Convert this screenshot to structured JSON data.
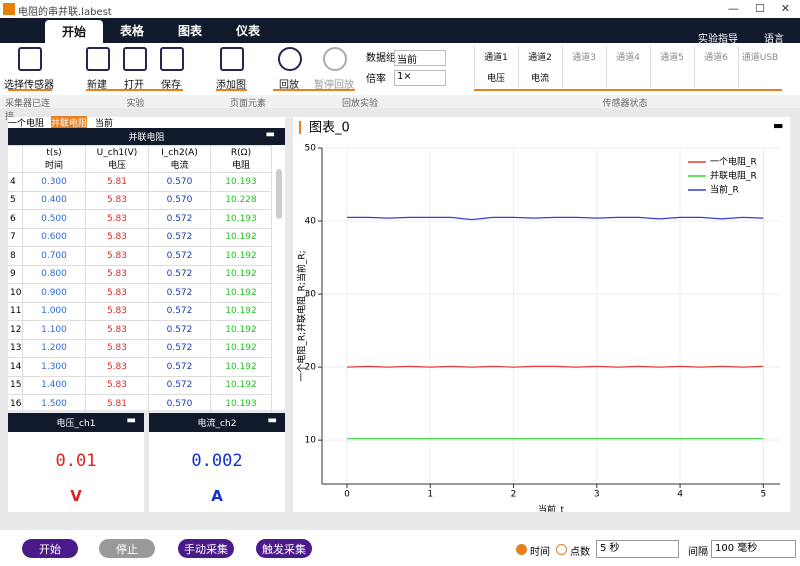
{
  "window": {
    "title": "电阻的串并联.labest"
  },
  "menu": {
    "tabs": [
      "开始",
      "表格",
      "图表",
      "仪表"
    ],
    "right": [
      "实验指导",
      "语言"
    ]
  },
  "toolbar": {
    "buttons": [
      "选择传感器",
      "新建",
      "打开",
      "保存",
      "添加图",
      "回放",
      "暂停回放"
    ],
    "data_group_label": "数据组",
    "data_group_value": "当前",
    "rate_label": "倍率",
    "rate_value": "1×",
    "channels": [
      "通道1",
      "通道2",
      "通道3",
      "通道4",
      "通道5",
      "通道6",
      "通道USB"
    ],
    "channel_values": [
      "电压",
      "电流"
    ],
    "groups": [
      "采集器已连接",
      "实验",
      "页面元素",
      "回放实验",
      "传感器状态"
    ]
  },
  "left": {
    "tabs": [
      "一个电阻",
      "并联电阻",
      "当前"
    ],
    "table": {
      "title": "并联电阻",
      "headers": [
        [
          "t(s)",
          "时间"
        ],
        [
          "U_ch1(V)",
          "电压"
        ],
        [
          "I_ch2(A)",
          "电流"
        ],
        [
          "R(Ω)",
          "电阻"
        ]
      ],
      "index": [
        "4",
        "5",
        "6",
        "7",
        "8",
        "9",
        "10",
        "11",
        "12",
        "13",
        "14",
        "15",
        "16"
      ],
      "rows": [
        [
          "0.300",
          "5.81",
          "0.570",
          "10.193"
        ],
        [
          "0.400",
          "5.83",
          "0.570",
          "10.228"
        ],
        [
          "0.500",
          "5.83",
          "0.572",
          "10.193"
        ],
        [
          "0.600",
          "5.83",
          "0.572",
          "10.192"
        ],
        [
          "0.700",
          "5.83",
          "0.572",
          "10.192"
        ],
        [
          "0.800",
          "5.83",
          "0.572",
          "10.192"
        ],
        [
          "0.900",
          "5.83",
          "0.572",
          "10.192"
        ],
        [
          "1.000",
          "5.83",
          "0.572",
          "10.192"
        ],
        [
          "1.100",
          "5.83",
          "0.572",
          "10.192"
        ],
        [
          "1.200",
          "5.83",
          "0.572",
          "10.192"
        ],
        [
          "1.300",
          "5.83",
          "0.572",
          "10.192"
        ],
        [
          "1.400",
          "5.83",
          "0.572",
          "10.192"
        ],
        [
          "1.500",
          "5.81",
          "0.570",
          "10.193"
        ]
      ]
    }
  },
  "meters": [
    {
      "title": "电压_ch1",
      "value": "0.01",
      "unit": "V",
      "color": "#e02020"
    },
    {
      "title": "电流_ch2",
      "value": "0.002",
      "unit": "A",
      "color": "#1030d0"
    }
  ],
  "chart_data": {
    "type": "line",
    "title": "图表_0",
    "x_label": "当前_t",
    "y_label": "一个电阻_R;并联电阻_R;当前_R;",
    "x": [
      0,
      0.25,
      0.5,
      0.75,
      1,
      1.25,
      1.5,
      1.75,
      2,
      2.25,
      2.5,
      2.75,
      3,
      3.25,
      3.5,
      3.75,
      4,
      4.25,
      4.5,
      4.75,
      5
    ],
    "series": [
      {
        "name": "一个电阻_R",
        "color": "#e83a3a",
        "values": [
          20.0,
          20.1,
          20.0,
          20.1,
          20.0,
          20.1,
          20.0,
          20.1,
          20.0,
          20.1,
          20.1,
          20.0,
          20.1,
          20.0,
          20.1,
          20.0,
          20.1,
          20.0,
          20.1,
          20.0,
          20.1
        ]
      },
      {
        "name": "并联电阻_R",
        "color": "#3ad43a",
        "values": [
          10.2,
          10.2,
          10.2,
          10.2,
          10.2,
          10.2,
          10.2,
          10.2,
          10.2,
          10.2,
          10.2,
          10.2,
          10.2,
          10.2,
          10.2,
          10.2,
          10.2,
          10.2,
          10.2,
          10.2,
          10.2
        ]
      },
      {
        "name": "当前_R",
        "color": "#3a3ae0",
        "values": [
          40.5,
          40.5,
          40.4,
          40.5,
          40.5,
          40.5,
          40.2,
          40.5,
          40.5,
          40.4,
          40.5,
          40.5,
          40.4,
          40.5,
          40.5,
          40.3,
          40.5,
          40.5,
          40.3,
          40.5,
          40.4
        ]
      }
    ],
    "xlim": [
      -0.3,
      5.2
    ],
    "ylim": [
      4,
      50
    ],
    "xticks": [
      0,
      1,
      2,
      3,
      4,
      5
    ],
    "yticks": [
      10,
      20,
      30,
      40,
      50
    ],
    "grid": true,
    "legend": "top-right"
  },
  "bottom": {
    "buttons": [
      "开始",
      "停止",
      "手动采集",
      "触发采集"
    ],
    "modes": [
      "时间",
      "点数"
    ],
    "duration": "5 秒",
    "interval_label": "间隔",
    "interval": "100 毫秒"
  }
}
